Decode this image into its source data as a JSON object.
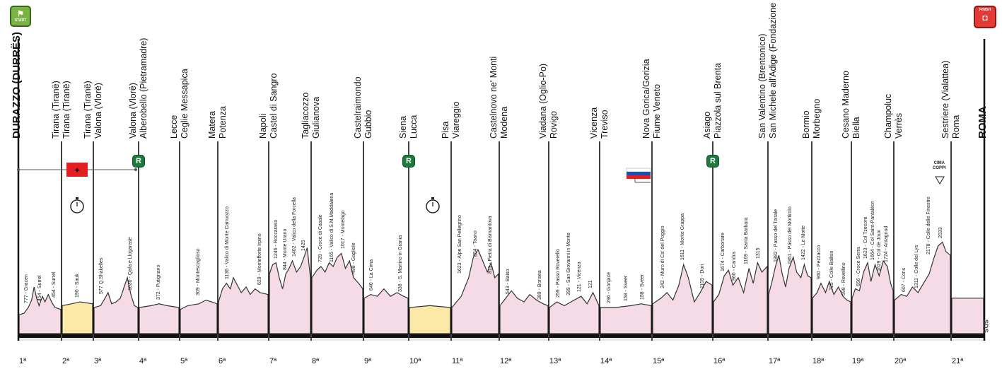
{
  "start_label": "START",
  "finish_label": "FINISH",
  "logo_text": "SDS",
  "cima_coppi": {
    "line1": "CIMA",
    "line2": "COPPI"
  },
  "colors": {
    "profile": "#f5dbe6",
    "tt_profile": "#fbe9a8",
    "ground": "#111111",
    "line": "#333333",
    "albania_flag": "#e41e20",
    "rest_badge": "#1e7a3c"
  },
  "stages": [
    {
      "num": "1ª",
      "start": "DURAZZO (DURRËS)",
      "finish": "Tirana (Tiranë)",
      "tt": false,
      "climbs": [
        "777 - Gracen",
        "454 - Surrel",
        "454 - Surrel"
      ]
    },
    {
      "num": "2ª",
      "start": "Tirana (Tiranë)",
      "finish": "Tirana (Tiranë)",
      "tt": true,
      "climbs": [
        "190 - Sauk"
      ]
    },
    {
      "num": "3ª",
      "start": "Valona (Vlorë)",
      "finish": "Valona (Vlorë)",
      "tt": false,
      "climbs": [
        "577 Q.Shakelles",
        "1030 - Qafa e Llogarasë"
      ]
    },
    {
      "num": "4ª",
      "start": "Alberobello (Pietramadre)",
      "finish": "Lecce",
      "tt": false,
      "climbs": [
        "372 - Putignano"
      ]
    },
    {
      "num": "5ª",
      "start": "Ceglie Messapica",
      "finish": "Matera",
      "tt": false,
      "climbs": [
        "309 - Montescaglioso"
      ]
    },
    {
      "num": "6ª",
      "start": "Potenza",
      "finish": "Napoli",
      "tt": false,
      "climbs": [
        "1136 - Valico di Monte Carruozzo",
        "629 - Montefforte Irpino"
      ]
    },
    {
      "num": "7ª",
      "start": "Castel di Sangro",
      "finish": "Tagliacozzo",
      "tt": false,
      "climbs": [
        "1246 - Roccaraso",
        "844 - Monte Urano",
        "1402 - Valico della Forcella",
        "1425"
      ]
    },
    {
      "num": "8ª",
      "start": "Giulianova",
      "finish": "Castelraimondo",
      "tt": false,
      "climbs": [
        "729 - Croce di Casale",
        "1165 - Valico di S.M.Maddalena",
        "1017 - Montelago",
        "498 - Gagliole"
      ]
    },
    {
      "num": "9ª",
      "start": "Gubbio",
      "finish": "Siena",
      "tt": false,
      "climbs": [
        "640 - La Cima",
        "338 - S. Martino in Grania"
      ]
    },
    {
      "num": "10ª",
      "start": "Lucca",
      "finish": "Pisa",
      "tt": true,
      "climbs": []
    },
    {
      "num": "11ª",
      "start": "Viareggio",
      "finish": "Castelnovo ne' Monti",
      "tt": false,
      "climbs": [
        "1623 - Alpe San Pellegrino",
        "854 - Toano",
        "811 - Pietra di Bismantova"
      ]
    },
    {
      "num": "12ª",
      "start": "Modena",
      "finish": "Viadana (Oglio-Po)",
      "tt": false,
      "climbs": [
        "543 - Baiso",
        "389 - Bonsea"
      ]
    },
    {
      "num": "13ª",
      "start": "Rovigo",
      "finish": "Vicenza",
      "tt": false,
      "climbs": [
        "259 - Passo Roverello",
        "399 - San Giovanni in Monte",
        "121 - Vicenza",
        "121"
      ]
    },
    {
      "num": "14ª",
      "start": "Treviso",
      "finish": "Nova Gorica/Gorizia",
      "tt": false,
      "climbs": [
        "296 - Gonjace",
        "158 - Sveer",
        "158 - Sveer"
      ]
    },
    {
      "num": "15ª",
      "start": "Fiume Veneto",
      "finish": "Asiago",
      "tt": false,
      "climbs": [
        "242 - Muro di Ca' del Poggio",
        "1611 - Monte Grappa",
        "1105 - Dori"
      ]
    },
    {
      "num": "16ª",
      "start": "Piazzola sul Brenta",
      "finish": "San Valentino (Brentonico)",
      "tt": false,
      "climbs": [
        "1674 - Carbonare",
        "960 - Candra",
        "1169 - Santa Barbara",
        "1315"
      ]
    },
    {
      "num": "17ª",
      "start": "San Michele all'Adige (Fondazione Edmund Mach)",
      "finish": "Bormio",
      "tt": false,
      "climbs": [
        "1882 - Passo del Tonale",
        "1851 - Passo del Mortirolo",
        "1422 - Le Motte"
      ]
    },
    {
      "num": "18ª",
      "start": "Morbegno",
      "finish": "Cesano Maderno",
      "tt": false,
      "climbs": [
        "960 - Pezzacco",
        "725 - Colle Balisio",
        "598 - Revellino"
      ]
    },
    {
      "num": "19ª",
      "start": "Biella",
      "finish": "Champoluc",
      "tt": false,
      "climbs": [
        "656 - Croce Serra",
        "1623 - Col Tzecore",
        "1664 - Col Saint-Pantaléon",
        "1629 - Col de Joux",
        "1724 - Antagnod"
      ]
    },
    {
      "num": "20ª",
      "start": "Verrès",
      "finish": "Sestriere (Vialattea)",
      "tt": false,
      "climbs": [
        "607 - Cons",
        "1311 - Colle del Lys",
        "2178 - Colle delle Finestre",
        "2033"
      ]
    },
    {
      "num": "21ª",
      "start": "Roma",
      "finish": "ROMA",
      "tt": false,
      "climbs": []
    }
  ]
}
